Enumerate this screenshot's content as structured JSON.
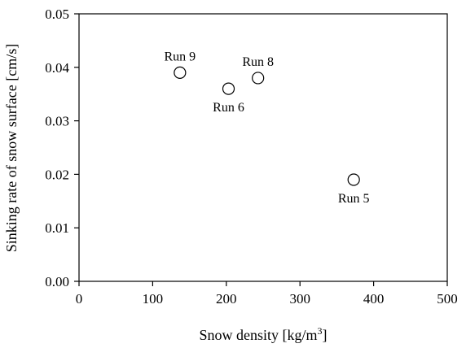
{
  "chart_data": {
    "type": "scatter",
    "title": "",
    "xlabel": "Snow density [kg/m",
    "xlabel_sup": "3",
    "xlabel_end": "]",
    "ylabel": "Sinking rate of snow surface [cm/s]",
    "xlim": [
      0,
      500
    ],
    "ylim": [
      0.0,
      0.05
    ],
    "x_ticks": [
      "0",
      "100",
      "200",
      "300",
      "400",
      "500"
    ],
    "y_ticks": [
      "0.00",
      "0.01",
      "0.02",
      "0.03",
      "0.04",
      "0.05"
    ],
    "grid": false,
    "legend": false,
    "marker": "open-circle",
    "points": [
      {
        "label": "Run 9",
        "x": 137,
        "y": 0.039,
        "label_position": "above"
      },
      {
        "label": "Run 6",
        "x": 203,
        "y": 0.036,
        "label_position": "below"
      },
      {
        "label": "Run 8",
        "x": 243,
        "y": 0.038,
        "label_position": "above"
      },
      {
        "label": "Run 5",
        "x": 373,
        "y": 0.019,
        "label_position": "below"
      }
    ]
  }
}
